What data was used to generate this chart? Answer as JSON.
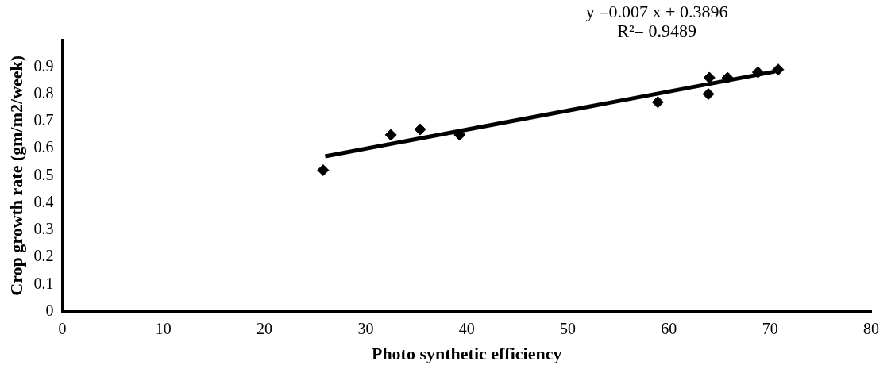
{
  "chart_data": {
    "type": "scatter",
    "xlabel": "Photo synthetic efficiency",
    "ylabel": "Crop growth rate (gm/m2/week)",
    "xlim": [
      0,
      80
    ],
    "xticks": [
      0,
      10,
      20,
      30,
      40,
      50,
      60,
      70,
      80
    ],
    "ylim": [
      0,
      1
    ],
    "yticks": [
      0,
      0.1,
      0.2,
      0.3,
      0.4,
      0.5,
      0.6,
      0.7,
      0.8,
      0.9
    ],
    "marker": "diamond",
    "grid": false,
    "legend": false,
    "annotations": [
      "y =0.007 x + 0.3896",
      "R²= 0.9489"
    ],
    "series": [
      {
        "type": "scatter",
        "color": "#000000",
        "x": [
          25.8,
          32.5,
          35.4,
          39.3,
          58.9,
          63.9,
          64,
          65.8,
          68.8,
          70.8
        ],
        "values": [
          0.52,
          0.65,
          0.67,
          0.65,
          0.77,
          0.8,
          0.86,
          0.86,
          0.88,
          0.89
        ]
      },
      {
        "type": "line",
        "color": "#000000",
        "marker": "none",
        "x": [
          26,
          70.5
        ],
        "values": [
          0.571,
          0.883
        ]
      }
    ]
  }
}
